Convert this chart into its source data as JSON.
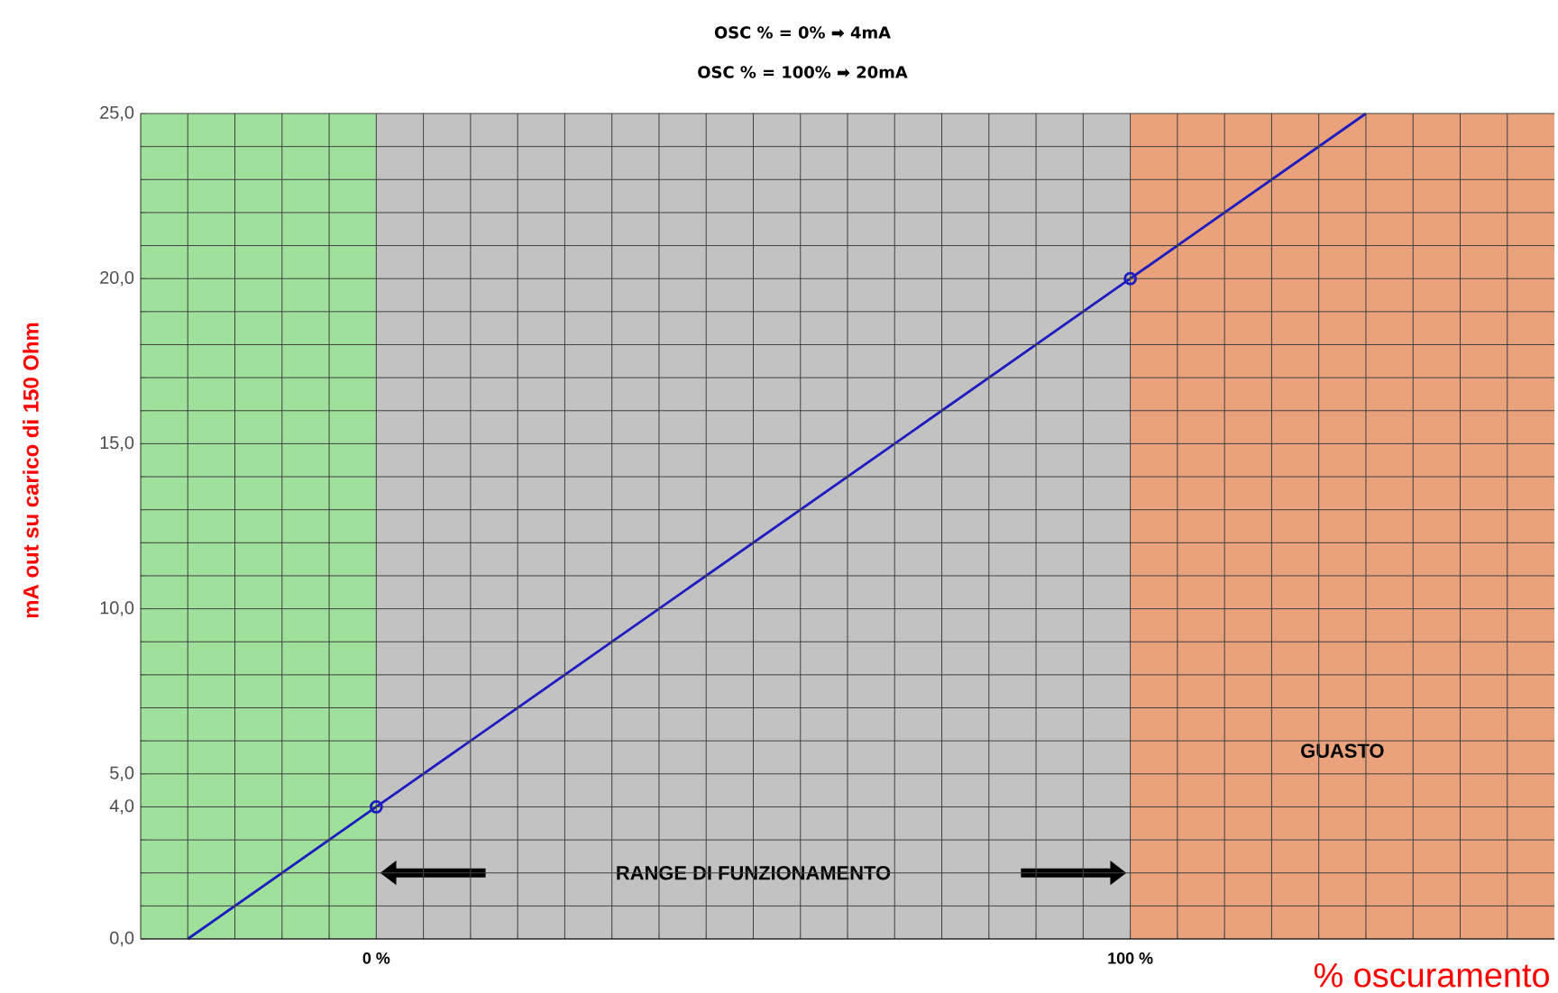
{
  "chart_data": {
    "type": "line",
    "xlabel": "% oscuramento",
    "ylabel": "mA out su carico di 150 Ohm",
    "annotations": [
      "OSC % = 0% ➡ 4mA",
      "OSC % = 100% ➡ 20mA"
    ],
    "xlim": [
      -31.25,
      156.25
    ],
    "ylim": [
      0,
      25
    ],
    "xticks": [
      {
        "value": -25,
        "label": null
      },
      {
        "value": -18.75,
        "label": null
      },
      {
        "value": -12.5,
        "label": null
      },
      {
        "value": -6.25,
        "label": null
      },
      {
        "value": 0,
        "label": "0 %"
      },
      {
        "value": 6.25,
        "label": null
      },
      {
        "value": 12.5,
        "label": null
      },
      {
        "value": 18.75,
        "label": null
      },
      {
        "value": 25,
        "label": null
      },
      {
        "value": 31.25,
        "label": null
      },
      {
        "value": 37.5,
        "label": null
      },
      {
        "value": 43.75,
        "label": null
      },
      {
        "value": 50,
        "label": null
      },
      {
        "value": 56.25,
        "label": null
      },
      {
        "value": 62.5,
        "label": null
      },
      {
        "value": 68.75,
        "label": null
      },
      {
        "value": 75,
        "label": null
      },
      {
        "value": 81.25,
        "label": null
      },
      {
        "value": 87.5,
        "label": null
      },
      {
        "value": 93.75,
        "label": null
      },
      {
        "value": 100,
        "label": "100 %"
      },
      {
        "value": 106.25,
        "label": null
      },
      {
        "value": 112.5,
        "label": null
      },
      {
        "value": 118.75,
        "label": null
      },
      {
        "value": 125,
        "label": null
      },
      {
        "value": 131.25,
        "label": null
      },
      {
        "value": 137.5,
        "label": null
      },
      {
        "value": 143.75,
        "label": null
      },
      {
        "value": 150,
        "label": null
      }
    ],
    "yticks": [
      {
        "value": 0,
        "label": "0,0"
      },
      {
        "value": 1,
        "label": null
      },
      {
        "value": 2,
        "label": null
      },
      {
        "value": 3,
        "label": null
      },
      {
        "value": 4,
        "label": "4,0"
      },
      {
        "value": 5,
        "label": "5,0"
      },
      {
        "value": 6,
        "label": null
      },
      {
        "value": 7,
        "label": null
      },
      {
        "value": 8,
        "label": null
      },
      {
        "value": 9,
        "label": null
      },
      {
        "value": 10,
        "label": "10,0"
      },
      {
        "value": 11,
        "label": null
      },
      {
        "value": 12,
        "label": null
      },
      {
        "value": 13,
        "label": null
      },
      {
        "value": 14,
        "label": null
      },
      {
        "value": 15,
        "label": "15,0"
      },
      {
        "value": 16,
        "label": null
      },
      {
        "value": 17,
        "label": null
      },
      {
        "value": 18,
        "label": null
      },
      {
        "value": 19,
        "label": null
      },
      {
        "value": 20,
        "label": "20,0"
      },
      {
        "value": 21,
        "label": null
      },
      {
        "value": 22,
        "label": null
      },
      {
        "value": 23,
        "label": null
      },
      {
        "value": 24,
        "label": null
      },
      {
        "value": 25,
        "label": "25,0"
      }
    ],
    "grid": true,
    "bands": [
      {
        "axis": "x",
        "from": -31.25,
        "to": 0,
        "color": "#9fe09b"
      },
      {
        "axis": "x",
        "from": 0,
        "to": 100,
        "color": "#c2c2c2",
        "label": "RANGE DI FUNZIONAMENTO"
      },
      {
        "axis": "x",
        "from": 100,
        "to": 156.25,
        "color": "#e9a27c",
        "label": "GUASTO"
      }
    ],
    "series": [
      {
        "color": "#1c1cc0",
        "x": [
          -25,
          0,
          100,
          131.25
        ],
        "values": [
          0,
          4,
          20,
          25
        ],
        "marker": "none"
      },
      {
        "type": "scatter",
        "color": "#1c1cc0",
        "x": [
          0,
          100
        ],
        "values": [
          4,
          20
        ],
        "marker": "circle"
      }
    ]
  }
}
